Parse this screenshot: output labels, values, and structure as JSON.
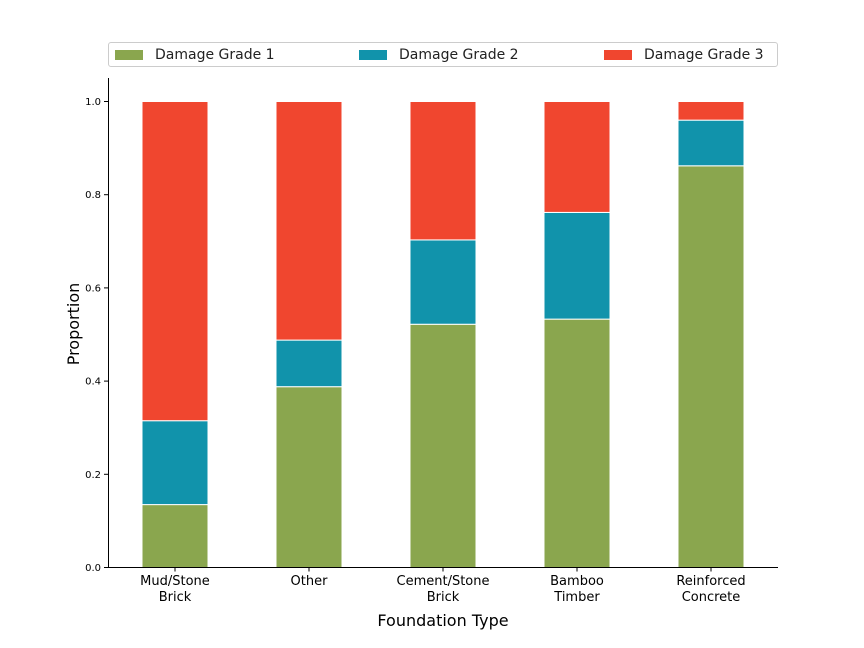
{
  "chart_data": {
    "type": "bar",
    "stacked": true,
    "xlabel": "Foundation Type",
    "ylabel": "Proportion",
    "ylim": [
      0,
      1.0
    ],
    "yticks": [
      "0.0",
      "0.2",
      "0.4",
      "0.6",
      "0.8",
      "1.0"
    ],
    "categories": [
      [
        "Mud/Stone",
        "Brick"
      ],
      [
        "Other"
      ],
      [
        "Cement/Stone",
        "Brick"
      ],
      [
        "Bamboo",
        "Timber"
      ],
      [
        "Reinforced",
        "Concrete"
      ]
    ],
    "series": [
      {
        "name": "Damage Grade 1",
        "color": "#8aa64e",
        "values": [
          0.135,
          0.388,
          0.522,
          0.533,
          0.862
        ]
      },
      {
        "name": "Damage Grade 2",
        "color": "#1193ab",
        "values": [
          0.18,
          0.1,
          0.181,
          0.229,
          0.098
        ]
      },
      {
        "name": "Damage Grade 3",
        "color": "#f0462f",
        "values": [
          0.685,
          0.512,
          0.297,
          0.238,
          0.04
        ]
      }
    ],
    "legend": "top",
    "grid": false
  }
}
